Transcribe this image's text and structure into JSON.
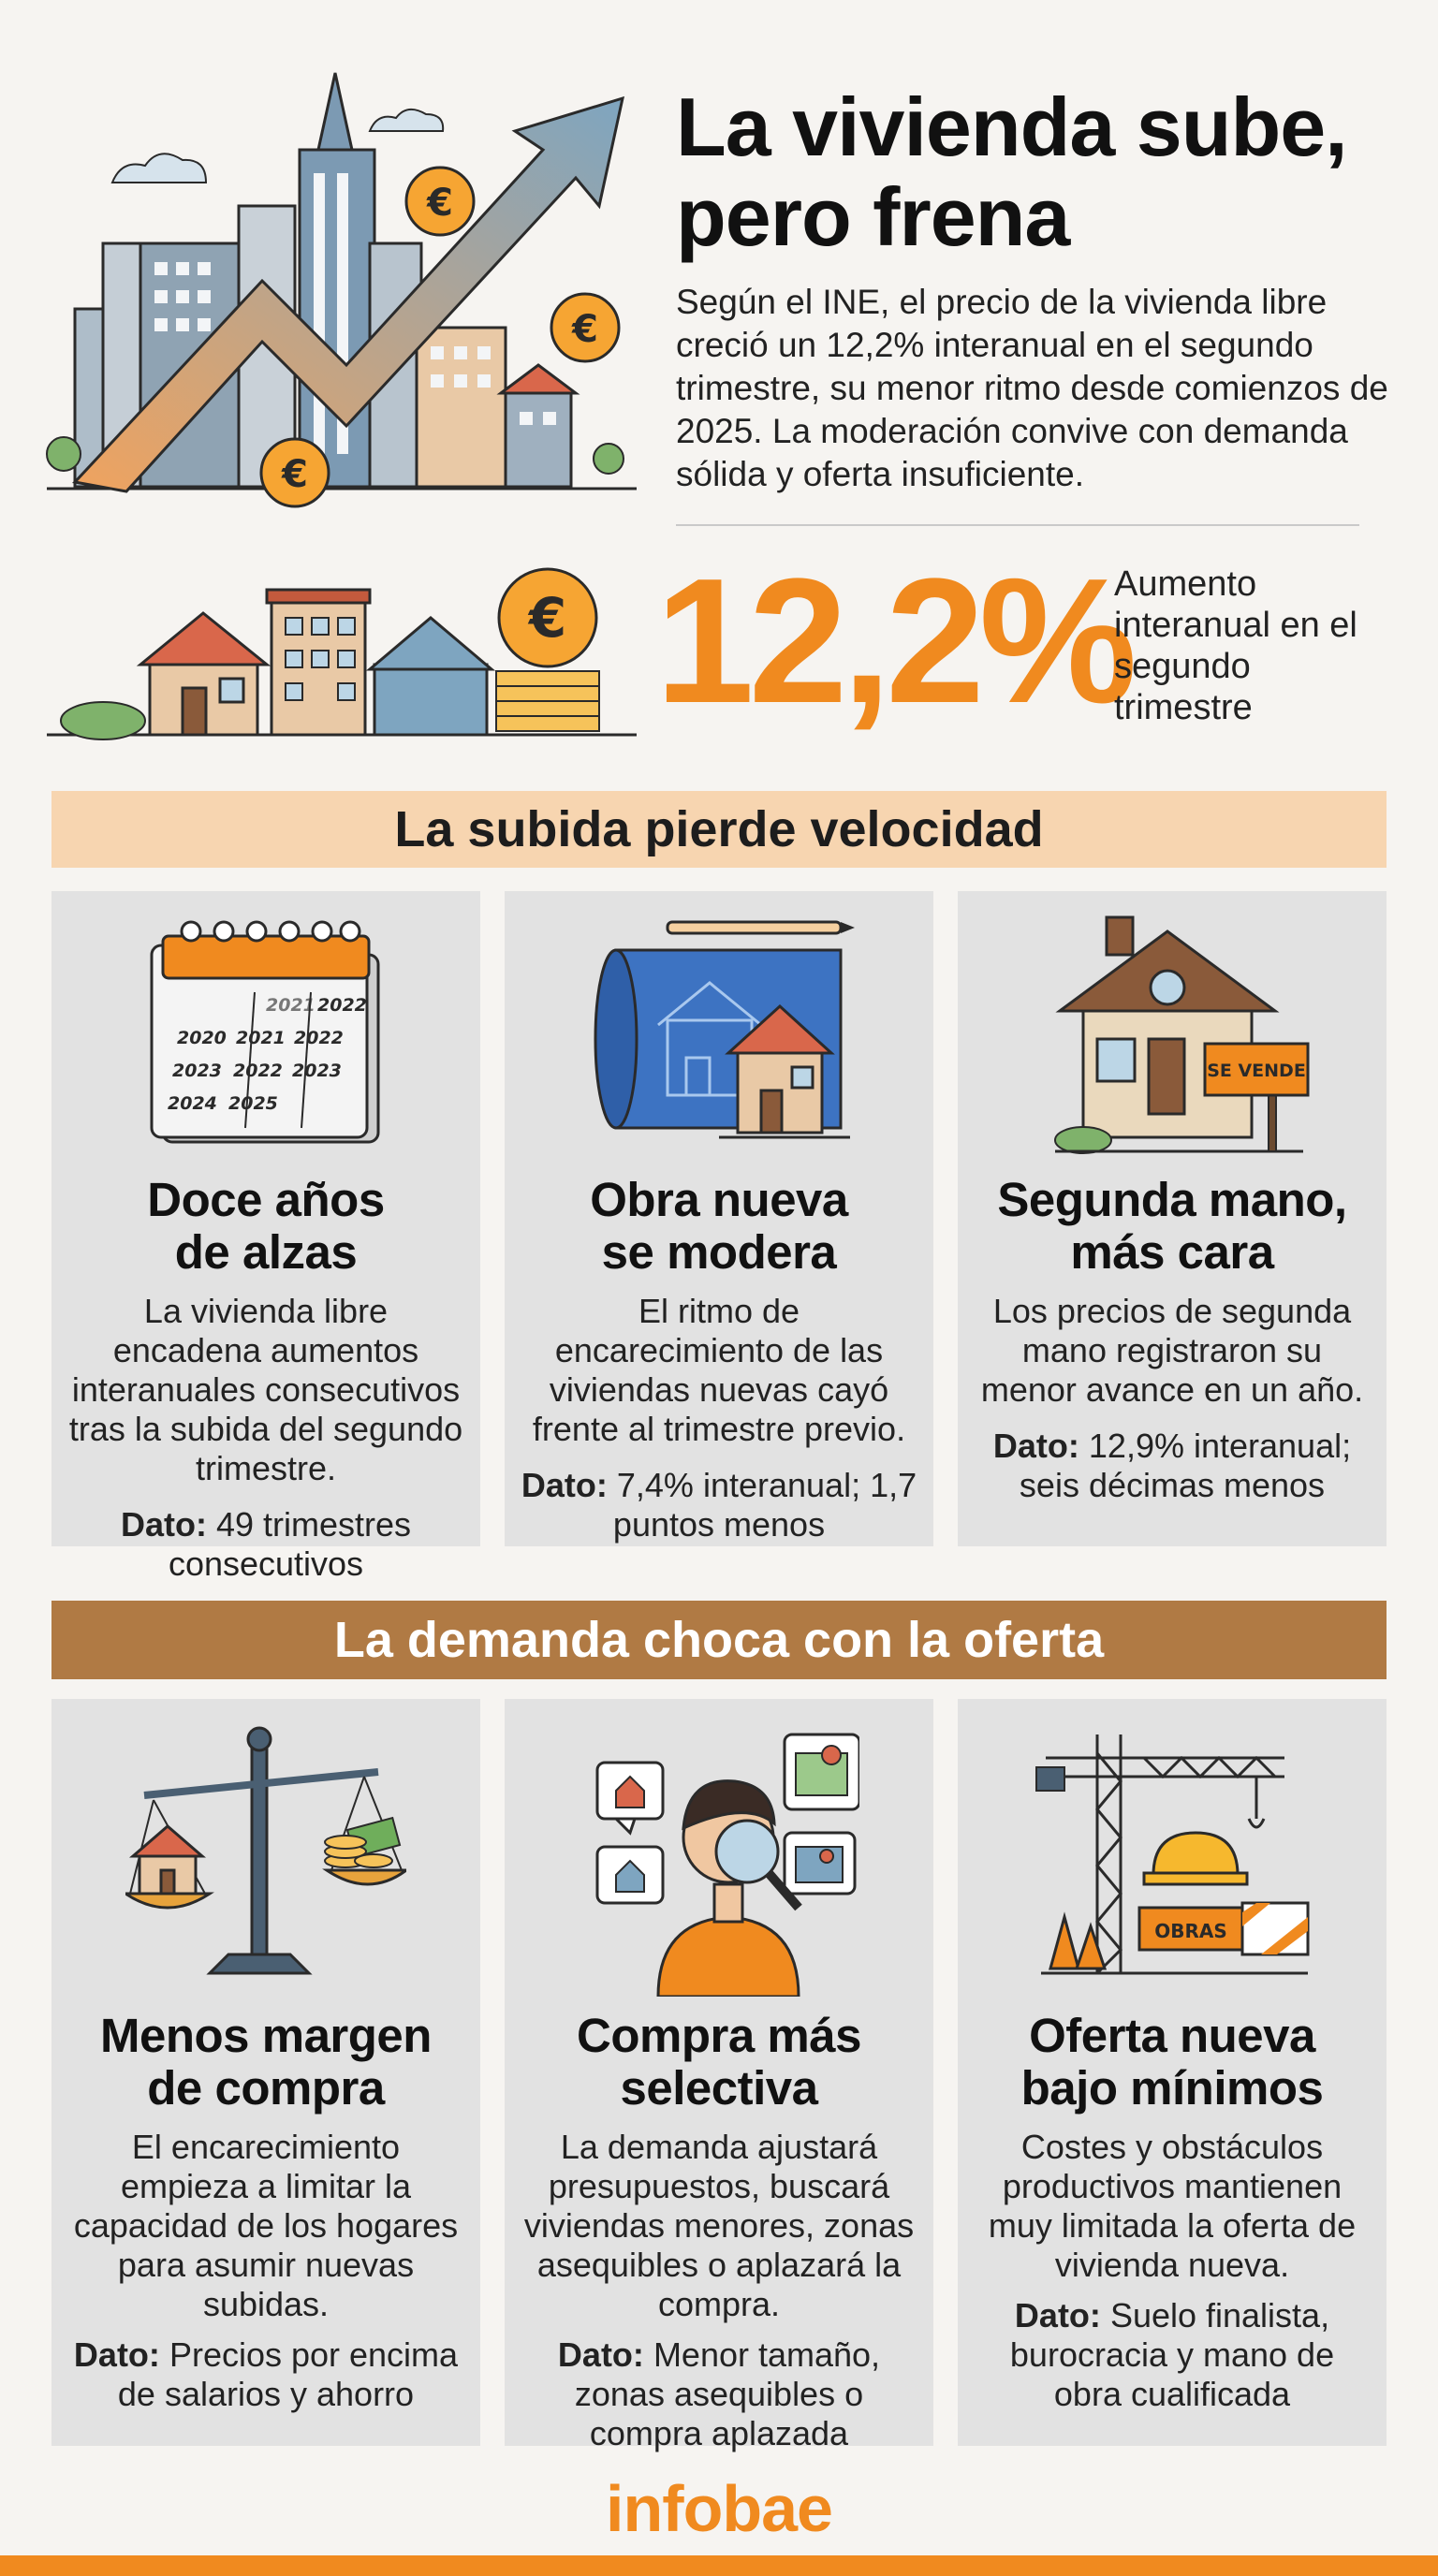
{
  "header": {
    "title_line1": "La vivienda sube,",
    "title_line2": "pero frena",
    "intro": "Según el INE, el precio de la vivienda libre creció un 12,2% interanual en el segundo trimestre, su menor ritmo desde comienzos de 2025. La moderación convive con demanda sólida y oferta insuficiente.",
    "big_number": "12,2%",
    "big_caption": "Aumento interanual en el segundo trimestre"
  },
  "section1": {
    "title": "La subida pierde velocidad",
    "calendar_years": [
      "2021",
      "2022",
      "2020",
      "2021",
      "2022",
      "2023",
      "2022",
      "2023",
      "2024",
      "2025"
    ],
    "cards": [
      {
        "title_line1": "Doce años",
        "title_line2": "de alzas",
        "body": "La vivienda libre encadena aumentos interanuales consecutivos tras la subida del segundo trimestre.",
        "dato_label": "Dato:",
        "dato_text": "49 trimestres consecutivos"
      },
      {
        "title_line1": "Obra nueva",
        "title_line2": "se modera",
        "body": "El ritmo de encarecimiento de las viviendas nuevas cayó frente al trimestre previo.",
        "dato_label": "Dato:",
        "dato_text": "7,4% interanual; 1,7 puntos menos"
      },
      {
        "title_line1": "Segunda mano,",
        "title_line2": "más cara",
        "body": "Los precios de segunda mano registraron su menor avance en un año.",
        "dato_label": "Dato:",
        "dato_text": "12,9% interanual; seis décimas menos",
        "sign_text": "SE VENDE"
      }
    ]
  },
  "section2": {
    "title": "La demanda choca con la oferta",
    "cards": [
      {
        "title_line1": "Menos margen",
        "title_line2": "de compra",
        "body": "El encarecimiento empieza a limitar la capacidad de los hogares para asumir nuevas subidas.",
        "dato_label": "Dato:",
        "dato_text": "Precios por encima de salarios y ahorro"
      },
      {
        "title_line1": "Compra más",
        "title_line2": "selectiva",
        "body": "La demanda ajustará presupuestos, buscará viviendas menores, zonas asequibles o aplazará la compra.",
        "dato_label": "Dato:",
        "dato_text": "Menor tamaño, zonas asequibles o compra aplazada"
      },
      {
        "title_line1": "Oferta nueva",
        "title_line2": "bajo mínimos",
        "body": "Costes y obstáculos productivos mantienen muy limitada la oferta de vivienda nueva.",
        "dato_label": "Dato:",
        "dato_text": "Suelo finalista, burocracia y mano de obra cualificada",
        "sign_text": "OBRAS"
      }
    ]
  },
  "footer": {
    "logo": "infobae"
  },
  "colors": {
    "accent": "#f08a1f",
    "banner1": "#f7d5b0",
    "banner2": "#b07a44",
    "card": "#e2e2e2"
  },
  "icons": [
    "city-growth-icon",
    "euro-coin-icon",
    "houses-icon",
    "calendar-icon",
    "blueprint-house-icon",
    "for-sale-house-icon",
    "balance-scale-icon",
    "person-magnifier-icon",
    "construction-crane-icon"
  ]
}
